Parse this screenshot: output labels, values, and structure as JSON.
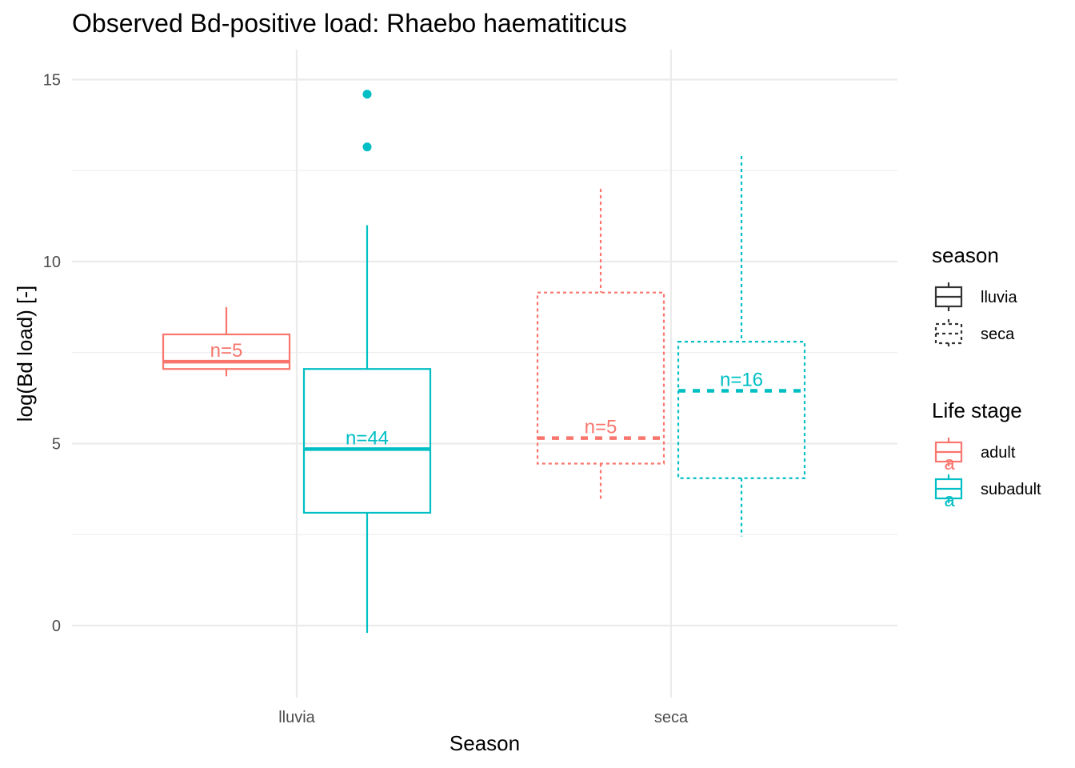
{
  "chart_data": {
    "type": "boxplot",
    "title": "Observed Bd-positive load: Rhaebo haematiticus",
    "xlabel": "Season",
    "ylabel": "log(Bd load) [-]",
    "ylim": [
      -2.0,
      15.8
    ],
    "yticks": [
      0,
      5,
      10,
      15
    ],
    "categories": [
      "lluvia",
      "seca"
    ],
    "colors": {
      "adult": "#F8766D",
      "subadult": "#00BFC4",
      "grid": "#EBEBEB",
      "legend_key": "#333333"
    },
    "legends": [
      {
        "title": "season",
        "items": [
          {
            "label": "lluvia",
            "linetype": "solid"
          },
          {
            "label": "seca",
            "linetype": "dotted"
          }
        ]
      },
      {
        "title": "Life stage",
        "items": [
          {
            "label": "adult",
            "color": "#F8766D",
            "key_text": "a"
          },
          {
            "label": "subadult",
            "color": "#00BFC4",
            "key_text": "a"
          }
        ]
      }
    ],
    "series": [
      {
        "season": "lluvia",
        "stage": "adult",
        "linetype": "solid",
        "whisker_low": 6.85,
        "q1": 7.05,
        "median": 7.25,
        "q3": 8.0,
        "whisker_high": 8.75,
        "outliers": [],
        "n_label": "n=5"
      },
      {
        "season": "lluvia",
        "stage": "subadult",
        "linetype": "solid",
        "whisker_low": -0.2,
        "q1": 3.1,
        "median": 4.85,
        "q3": 7.05,
        "whisker_high": 11.0,
        "outliers": [
          13.15,
          14.6
        ],
        "n_label": "n=44"
      },
      {
        "season": "seca",
        "stage": "adult",
        "linetype": "dotted",
        "whisker_low": 3.45,
        "q1": 4.45,
        "median": 5.15,
        "q3": 9.15,
        "whisker_high": 12.0,
        "outliers": [],
        "n_label": "n=5"
      },
      {
        "season": "seca",
        "stage": "subadult",
        "linetype": "dotted",
        "whisker_low": 2.45,
        "q1": 4.05,
        "median": 6.45,
        "q3": 7.8,
        "whisker_high": 12.9,
        "outliers": [],
        "n_label": "n=16"
      }
    ]
  }
}
